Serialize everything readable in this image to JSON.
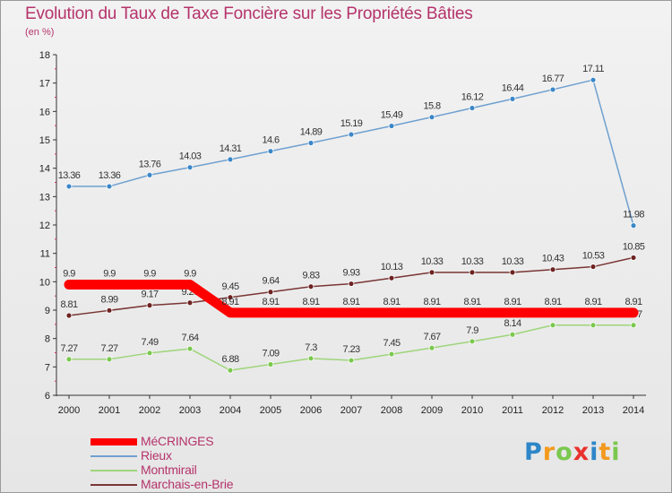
{
  "title": "Evolution du Taux de Taxe Foncière sur les Propriétés Bâties",
  "unit_label": "(en %)",
  "logo": "Proxiti",
  "chart_data": {
    "type": "line",
    "x": [
      "2000",
      "2001",
      "2002",
      "2003",
      "2004",
      "2005",
      "2006",
      "2007",
      "2008",
      "2009",
      "2010",
      "2011",
      "2012",
      "2013",
      "2014"
    ],
    "ylim": [
      6,
      18
    ],
    "yticks": [
      6,
      7,
      8,
      9,
      10,
      11,
      12,
      13,
      14,
      15,
      16,
      17,
      18
    ],
    "grid": false,
    "legend_position": "bottom-left",
    "series": [
      {
        "name": "Rieux",
        "color": "#6fa0d0",
        "marker": "#3b87c8",
        "values": [
          13.36,
          13.36,
          13.76,
          14.03,
          14.31,
          14.6,
          14.89,
          15.19,
          15.49,
          15.8,
          16.12,
          16.44,
          16.77,
          17.11,
          11.98
        ],
        "labels": [
          "13.36",
          "13.36",
          "13.76",
          "14.03",
          "14.31",
          "14.6",
          "14.89",
          "15.19",
          "15.49",
          "15.8",
          "16.12",
          "16.44",
          "16.77",
          "17.11",
          "11.98"
        ]
      },
      {
        "name": "Montmirail",
        "color": "#9ed57a",
        "marker": "#7bc84e",
        "values": [
          7.27,
          7.27,
          7.49,
          7.64,
          6.88,
          7.09,
          7.3,
          7.23,
          7.45,
          7.67,
          7.9,
          8.14,
          8.47,
          8.47,
          8.47
        ],
        "labels": [
          "7.27",
          "7.27",
          "7.49",
          "7.64",
          "6.88",
          "7.09",
          "7.3",
          "7.23",
          "7.45",
          "7.67",
          "7.9",
          "8.14",
          "8.47",
          "8.47",
          "8.47"
        ]
      },
      {
        "name": "Marchais-en-Brie",
        "color": "#7a3535",
        "marker": "#6e2222",
        "values": [
          8.81,
          8.99,
          9.17,
          9.26,
          9.45,
          9.64,
          9.83,
          9.93,
          10.13,
          10.33,
          10.33,
          10.33,
          10.43,
          10.53,
          10.85
        ],
        "labels": [
          "8.81",
          "8.99",
          "9.17",
          "9.26",
          "9.45",
          "9.64",
          "9.83",
          "9.93",
          "10.13",
          "10.33",
          "10.33",
          "10.33",
          "10.43",
          "10.53",
          "10.85"
        ]
      },
      {
        "name": "MéCRINGES",
        "color": "#ff0000",
        "marker": "#ff0000",
        "values": [
          9.9,
          9.9,
          9.9,
          9.9,
          8.91,
          8.91,
          8.91,
          8.91,
          8.91,
          8.91,
          8.91,
          8.91,
          8.91,
          8.91,
          8.91
        ],
        "labels": [
          "9.9",
          "9.9",
          "9.9",
          "9.9",
          "8.91",
          "8.91",
          "8.91",
          "8.91",
          "8.91",
          "8.91",
          "8.91",
          "8.91",
          "8.91",
          "8.91",
          "8.91"
        ]
      }
    ]
  }
}
